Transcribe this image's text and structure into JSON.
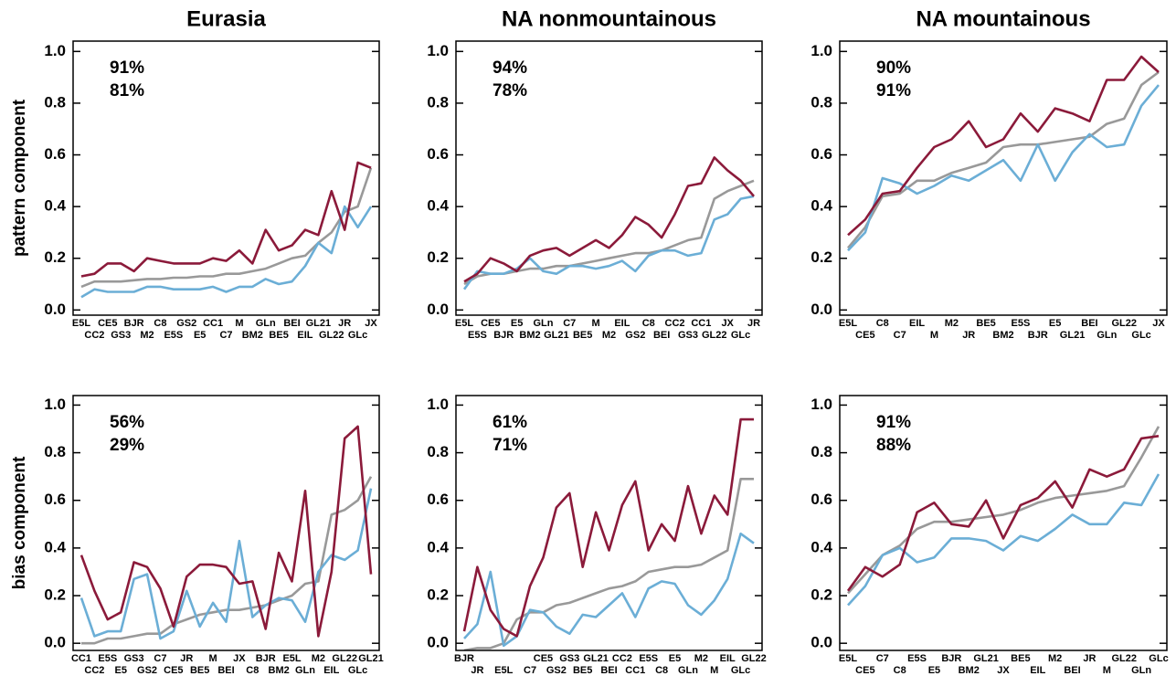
{
  "chart_data": [
    {
      "type": "line",
      "title": "Eurasia",
      "ylabel": "pattern component",
      "categories": [
        "E5L",
        "CC2",
        "CE5",
        "GS3",
        "BJR",
        "M2",
        "C8",
        "E5S",
        "GS2",
        "E5",
        "CC1",
        "C7",
        "M",
        "BM2",
        "GLn",
        "BE5",
        "BEI",
        "EIL",
        "GL21",
        "GL22",
        "JR",
        "GLc",
        "JX"
      ],
      "annotations": [
        {
          "text": "91%",
          "color": "#6baed6"
        },
        {
          "text": "81%",
          "color": "#8b1a3a"
        }
      ],
      "ylim": [
        -0.02,
        1.04
      ],
      "yticks": [
        {
          "value": 0,
          "label": "0.0"
        },
        0.2,
        0.4,
        0.6,
        0.8,
        {
          "value": 1,
          "label": "1.0"
        }
      ],
      "series": [
        {
          "color": "#999999",
          "values": [
            0.09,
            0.11,
            0.11,
            0.11,
            0.115,
            0.12,
            0.12,
            0.125,
            0.125,
            0.13,
            0.13,
            0.14,
            0.14,
            0.15,
            0.16,
            0.18,
            0.2,
            0.21,
            0.26,
            0.3,
            0.38,
            0.4,
            0.55
          ]
        },
        {
          "color": "#6baed6",
          "values": [
            0.05,
            0.08,
            0.07,
            0.07,
            0.07,
            0.09,
            0.09,
            0.08,
            0.08,
            0.08,
            0.09,
            0.07,
            0.09,
            0.09,
            0.12,
            0.1,
            0.11,
            0.17,
            0.26,
            0.22,
            0.4,
            0.32,
            0.4
          ]
        },
        {
          "color": "#8b1a3a",
          "values": [
            0.13,
            0.14,
            0.18,
            0.18,
            0.15,
            0.2,
            0.19,
            0.18,
            0.18,
            0.18,
            0.2,
            0.19,
            0.23,
            0.18,
            0.31,
            0.23,
            0.25,
            0.31,
            0.29,
            0.46,
            0.31,
            0.57,
            0.55
          ]
        }
      ]
    },
    {
      "type": "line",
      "title": "NA nonmountainous",
      "categories": [
        "E5L",
        "E5S",
        "CE5",
        "BJR",
        "E5",
        "BM2",
        "GLn",
        "GL21",
        "C7",
        "BE5",
        "M",
        "M2",
        "EIL",
        "GS2",
        "C8",
        "BEI",
        "CC2",
        "GS3",
        "CC1",
        "GL22",
        "JX",
        "GLc",
        "JR"
      ],
      "annotations": [
        {
          "text": "94%",
          "color": "#6baed6"
        },
        {
          "text": "78%",
          "color": "#8b1a3a"
        }
      ],
      "ylim": [
        -0.02,
        1.04
      ],
      "yticks": [
        {
          "value": 0,
          "label": "0.0"
        },
        0.2,
        0.4,
        0.6,
        0.8,
        {
          "value": 1,
          "label": "1.0"
        }
      ],
      "series": [
        {
          "color": "#999999",
          "values": [
            0.1,
            0.13,
            0.14,
            0.14,
            0.15,
            0.16,
            0.16,
            0.17,
            0.17,
            0.18,
            0.19,
            0.2,
            0.21,
            0.22,
            0.22,
            0.23,
            0.25,
            0.27,
            0.28,
            0.43,
            0.46,
            0.48,
            0.5
          ]
        },
        {
          "color": "#6baed6",
          "values": [
            0.08,
            0.15,
            0.14,
            0.14,
            0.16,
            0.2,
            0.15,
            0.14,
            0.17,
            0.17,
            0.16,
            0.17,
            0.19,
            0.15,
            0.21,
            0.23,
            0.23,
            0.21,
            0.22,
            0.35,
            0.37,
            0.43,
            0.44
          ]
        },
        {
          "color": "#8b1a3a",
          "values": [
            0.11,
            0.14,
            0.2,
            0.18,
            0.15,
            0.21,
            0.23,
            0.24,
            0.21,
            0.24,
            0.27,
            0.24,
            0.29,
            0.36,
            0.33,
            0.28,
            0.37,
            0.48,
            0.49,
            0.59,
            0.54,
            0.5,
            0.44
          ]
        }
      ]
    },
    {
      "type": "line",
      "title": "NA mountainous",
      "categories": [
        "E5L",
        "CE5",
        "C8",
        "C7",
        "EIL",
        "M",
        "M2",
        "JR",
        "BE5",
        "BM2",
        "E5S",
        "BJR",
        "E5",
        "GL21",
        "BEI",
        "GLn",
        "GL22",
        "GLc",
        "JX"
      ],
      "annotations": [
        {
          "text": "90%",
          "color": "#6baed6"
        },
        {
          "text": "91%",
          "color": "#8b1a3a"
        }
      ],
      "ylim": [
        -0.02,
        1.04
      ],
      "yticks": [
        {
          "value": 0,
          "label": "0.0"
        },
        0.2,
        0.4,
        0.6,
        0.8,
        {
          "value": 1,
          "label": "1.0"
        }
      ],
      "series": [
        {
          "color": "#999999",
          "values": [
            0.24,
            0.32,
            0.44,
            0.45,
            0.5,
            0.5,
            0.53,
            0.55,
            0.57,
            0.63,
            0.64,
            0.64,
            0.65,
            0.66,
            0.67,
            0.72,
            0.74,
            0.87,
            0.92
          ]
        },
        {
          "color": "#6baed6",
          "values": [
            0.23,
            0.3,
            0.51,
            0.49,
            0.45,
            0.48,
            0.52,
            0.5,
            0.54,
            0.58,
            0.5,
            0.64,
            0.5,
            0.61,
            0.68,
            0.63,
            0.64,
            0.79,
            0.87
          ]
        },
        {
          "color": "#8b1a3a",
          "values": [
            0.29,
            0.35,
            0.45,
            0.46,
            0.55,
            0.63,
            0.66,
            0.73,
            0.63,
            0.66,
            0.76,
            0.69,
            0.78,
            0.76,
            0.73,
            0.89,
            0.89,
            0.98,
            0.92
          ]
        }
      ]
    },
    {
      "type": "line",
      "ylabel": "bias component",
      "categories": [
        "CC1",
        "CC2",
        "E5S",
        "E5",
        "GS3",
        "GS2",
        "C7",
        "CE5",
        "JR",
        "BE5",
        "M",
        "BEI",
        "JX",
        "C8",
        "BJR",
        "BM2",
        "E5L",
        "GLn",
        "M2",
        "EIL",
        "GL22",
        "GLc",
        "GL21"
      ],
      "annotations": [
        {
          "text": "56%",
          "color": "#6baed6"
        },
        {
          "text": "29%",
          "color": "#8b1a3a"
        }
      ],
      "ylim": [
        -0.03,
        1.04
      ],
      "yticks": [
        {
          "value": 0,
          "label": "0.0"
        },
        0.2,
        0.4,
        0.6,
        0.8,
        {
          "value": 1,
          "label": "1.0"
        }
      ],
      "series": [
        {
          "color": "#999999",
          "values": [
            0,
            0,
            0.02,
            0.02,
            0.03,
            0.04,
            0.04,
            0.08,
            0.1,
            0.12,
            0.13,
            0.14,
            0.14,
            0.15,
            0.16,
            0.18,
            0.2,
            0.25,
            0.26,
            0.54,
            0.56,
            0.6,
            0.7
          ]
        },
        {
          "color": "#6baed6",
          "values": [
            0.19,
            0.03,
            0.05,
            0.05,
            0.27,
            0.29,
            0.02,
            0.05,
            0.22,
            0.07,
            0.17,
            0.09,
            0.43,
            0.11,
            0.16,
            0.19,
            0.18,
            0.09,
            0.3,
            0.37,
            0.35,
            0.39,
            0.65
          ]
        },
        {
          "color": "#8b1a3a",
          "values": [
            0.37,
            0.22,
            0.1,
            0.13,
            0.34,
            0.32,
            0.23,
            0.07,
            0.28,
            0.33,
            0.33,
            0.32,
            0.25,
            0.26,
            0.06,
            0.38,
            0.26,
            0.64,
            0.03,
            0.3,
            0.86,
            0.91,
            0.29
          ]
        }
      ]
    },
    {
      "type": "line",
      "categories": [
        "BJR",
        "JR",
        null,
        "E5L",
        null,
        "C7",
        "CE5",
        "GS2",
        "GS3",
        "BE5",
        "GL21",
        "BEI",
        "CC2",
        "CC1",
        "E5S",
        "C8",
        "E5",
        "GLn",
        "M2",
        "M",
        "EIL",
        "GLc",
        "GL22"
      ],
      "annotations": [
        {
          "text": "61%",
          "color": "#6baed6"
        },
        {
          "text": "71%",
          "color": "#8b1a3a"
        }
      ],
      "ylim": [
        -0.03,
        1.04
      ],
      "yticks": [
        {
          "value": 0,
          "label": "0.0"
        },
        0.2,
        0.4,
        0.6,
        0.8,
        {
          "value": 1,
          "label": "1.0"
        }
      ],
      "series": [
        {
          "color": "#999999",
          "values": [
            -0.03,
            -0.02,
            -0.02,
            0,
            0.1,
            0.13,
            0.13,
            0.16,
            0.17,
            0.19,
            0.21,
            0.23,
            0.24,
            0.26,
            0.3,
            0.31,
            0.32,
            0.32,
            0.33,
            0.36,
            0.39,
            0.69,
            0.69
          ]
        },
        {
          "color": "#6baed6",
          "values": [
            0.02,
            0.08,
            0.3,
            -0.01,
            0.03,
            0.14,
            0.13,
            0.07,
            0.04,
            0.12,
            0.11,
            0.16,
            0.21,
            0.11,
            0.23,
            0.26,
            0.25,
            0.16,
            0.12,
            0.18,
            0.27,
            0.46,
            0.42
          ]
        },
        {
          "color": "#8b1a3a",
          "values": [
            0.05,
            0.32,
            0.14,
            0.06,
            0.03,
            0.24,
            0.36,
            0.57,
            0.63,
            0.32,
            0.55,
            0.39,
            0.58,
            0.68,
            0.39,
            0.5,
            0.43,
            0.66,
            0.46,
            0.62,
            0.54,
            0.94,
            0.94
          ]
        }
      ]
    },
    {
      "type": "line",
      "categories": [
        "E5L",
        "CE5",
        "C7",
        "C8",
        "E5S",
        "E5",
        "BJR",
        "BM2",
        "GL21",
        "JX",
        "BE5",
        "EIL",
        "M2",
        "BEI",
        "JR",
        "M",
        "GL22",
        "GLn",
        "GLc"
      ],
      "annotations": [
        {
          "text": "91%",
          "color": "#6baed6"
        },
        {
          "text": "88%",
          "color": "#8b1a3a"
        }
      ],
      "ylim": [
        -0.03,
        1.04
      ],
      "yticks": [
        {
          "value": 0,
          "label": "0.0"
        },
        0.2,
        0.4,
        0.6,
        0.8,
        {
          "value": 1,
          "label": "1.0"
        }
      ],
      "series": [
        {
          "color": "#999999",
          "values": [
            0.21,
            0.29,
            0.37,
            0.41,
            0.48,
            0.51,
            0.51,
            0.52,
            0.53,
            0.54,
            0.56,
            0.59,
            0.61,
            0.62,
            0.63,
            0.64,
            0.66,
            0.78,
            0.91
          ]
        },
        {
          "color": "#6baed6",
          "values": [
            0.16,
            0.24,
            0.37,
            0.4,
            0.34,
            0.36,
            0.44,
            0.44,
            0.43,
            0.39,
            0.45,
            0.43,
            0.48,
            0.54,
            0.5,
            0.5,
            0.59,
            0.58,
            0.71
          ]
        },
        {
          "color": "#8b1a3a",
          "values": [
            0.22,
            0.32,
            0.28,
            0.33,
            0.55,
            0.59,
            0.5,
            0.49,
            0.6,
            0.44,
            0.58,
            0.61,
            0.68,
            0.57,
            0.73,
            0.7,
            0.73,
            0.86,
            0.87
          ]
        }
      ]
    }
  ]
}
